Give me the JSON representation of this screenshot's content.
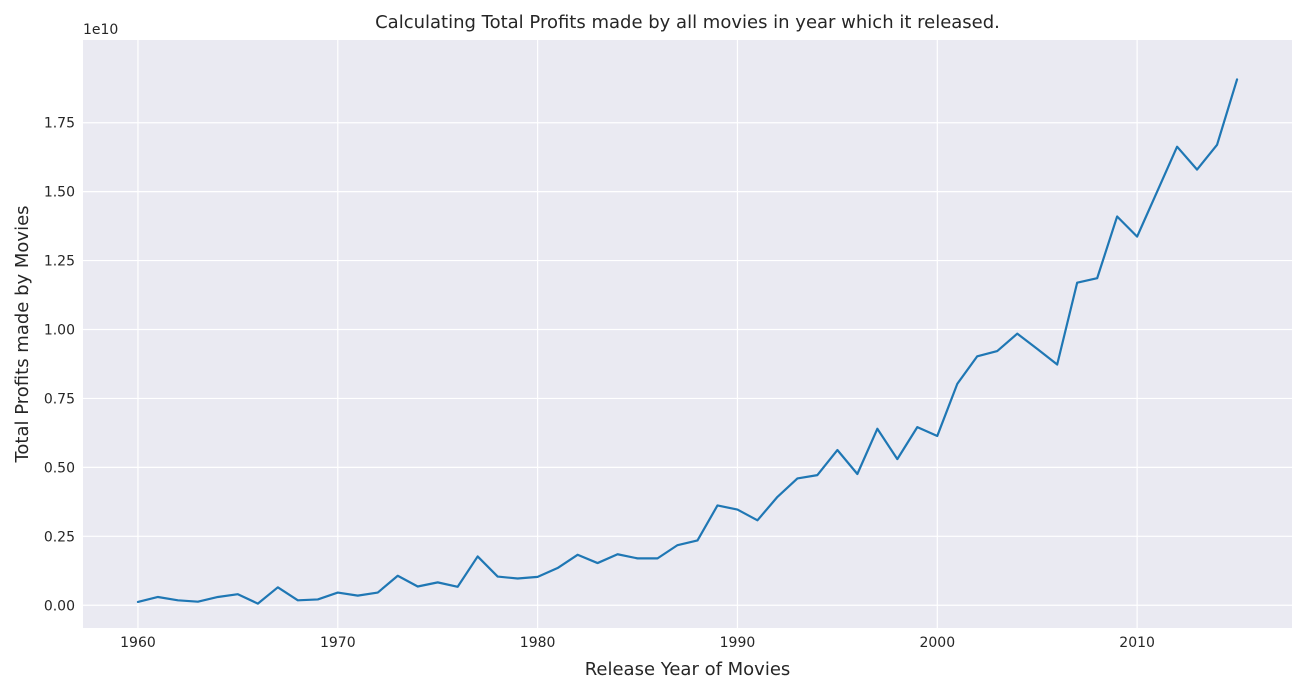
{
  "chart_data": {
    "type": "line",
    "title": "Calculating Total Profits made by all movies in year which it released.",
    "xlabel": "Release Year of Movies",
    "ylabel": "Total Profits made by Movies",
    "y_offset_label": "1e10",
    "xlim": [
      1957.25,
      2017.75
    ],
    "ylim": [
      -0.0825,
      2.05
    ],
    "y_scale_factor": "1e10",
    "grid": true,
    "legend": "none",
    "x_ticks": [
      1960,
      1970,
      1980,
      1990,
      2000,
      2010
    ],
    "y_ticks": [
      0.0,
      0.25,
      0.5,
      0.75,
      1.0,
      1.25,
      1.5,
      1.75
    ],
    "y_tick_labels": [
      "0.00",
      "0.25",
      "0.50",
      "0.75",
      "1.00",
      "1.25",
      "1.50",
      "1.75"
    ],
    "series": [
      {
        "color": "#1f77b4",
        "x": [
          1960,
          1961,
          1962,
          1963,
          1964,
          1965,
          1966,
          1967,
          1968,
          1969,
          1970,
          1971,
          1972,
          1973,
          1974,
          1975,
          1976,
          1977,
          1978,
          1979,
          1980,
          1981,
          1982,
          1983,
          1984,
          1985,
          1986,
          1987,
          1988,
          1989,
          1990,
          1991,
          1992,
          1993,
          1994,
          1995,
          1996,
          1997,
          1998,
          1999,
          2000,
          2001,
          2002,
          2003,
          2004,
          2005,
          2006,
          2007,
          2008,
          2009,
          2010,
          2011,
          2012,
          2013,
          2014,
          2015
        ],
        "values": [
          0.012,
          0.03,
          0.018,
          0.013,
          0.03,
          0.04,
          0.006,
          0.065,
          0.018,
          0.021,
          0.046,
          0.035,
          0.046,
          0.107,
          0.068,
          0.083,
          0.067,
          0.177,
          0.104,
          0.097,
          0.103,
          0.135,
          0.183,
          0.153,
          0.185,
          0.17,
          0.17,
          0.218,
          0.235,
          0.362,
          0.347,
          0.308,
          0.393,
          0.46,
          0.472,
          0.563,
          0.476,
          0.64,
          0.53,
          0.646,
          0.614,
          0.803,
          0.903,
          0.922,
          0.985,
          0.93,
          0.873,
          1.17,
          1.186,
          1.41,
          1.337,
          1.5,
          1.663,
          1.58,
          1.67,
          1.907
        ]
      }
    ]
  },
  "colors": {
    "plot_background": "#eaeaf2",
    "grid": "#ffffff",
    "line": "#1f77b4",
    "text": "#262626"
  }
}
